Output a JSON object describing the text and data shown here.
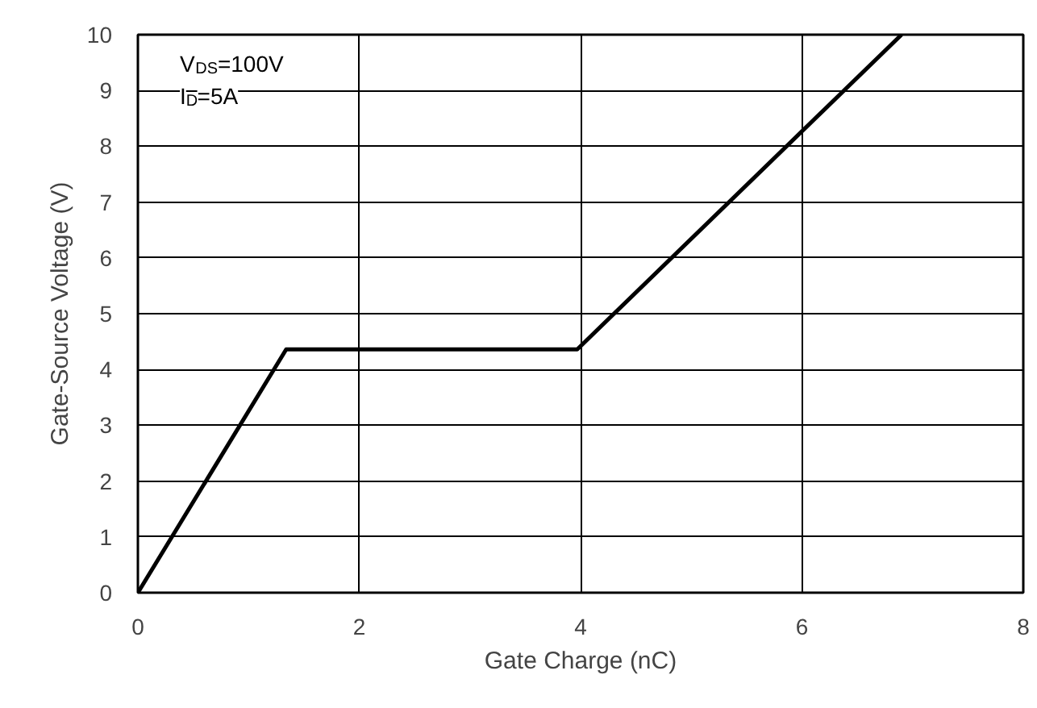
{
  "chart_data": {
    "type": "line",
    "xlabel": "Gate Charge (nC)",
    "ylabel": "Gate-Source Voltage (V)",
    "x": [
      0,
      1.34,
      3.97,
      6.9
    ],
    "series": [
      {
        "color": "#000000",
        "values": [
          0,
          4.36,
          4.36,
          10
        ]
      }
    ],
    "xlim": [
      0,
      8
    ],
    "ylim": [
      0,
      10
    ],
    "xticks": [
      0,
      2,
      4,
      6,
      8
    ],
    "yticks": [
      0,
      1,
      2,
      3,
      4,
      5,
      6,
      7,
      8,
      9,
      10
    ],
    "grid": true,
    "marker": "none",
    "line_style": "solid",
    "annotations": [
      "V$_{DS}$=100V",
      "I$_{D}$=5A"
    ]
  }
}
